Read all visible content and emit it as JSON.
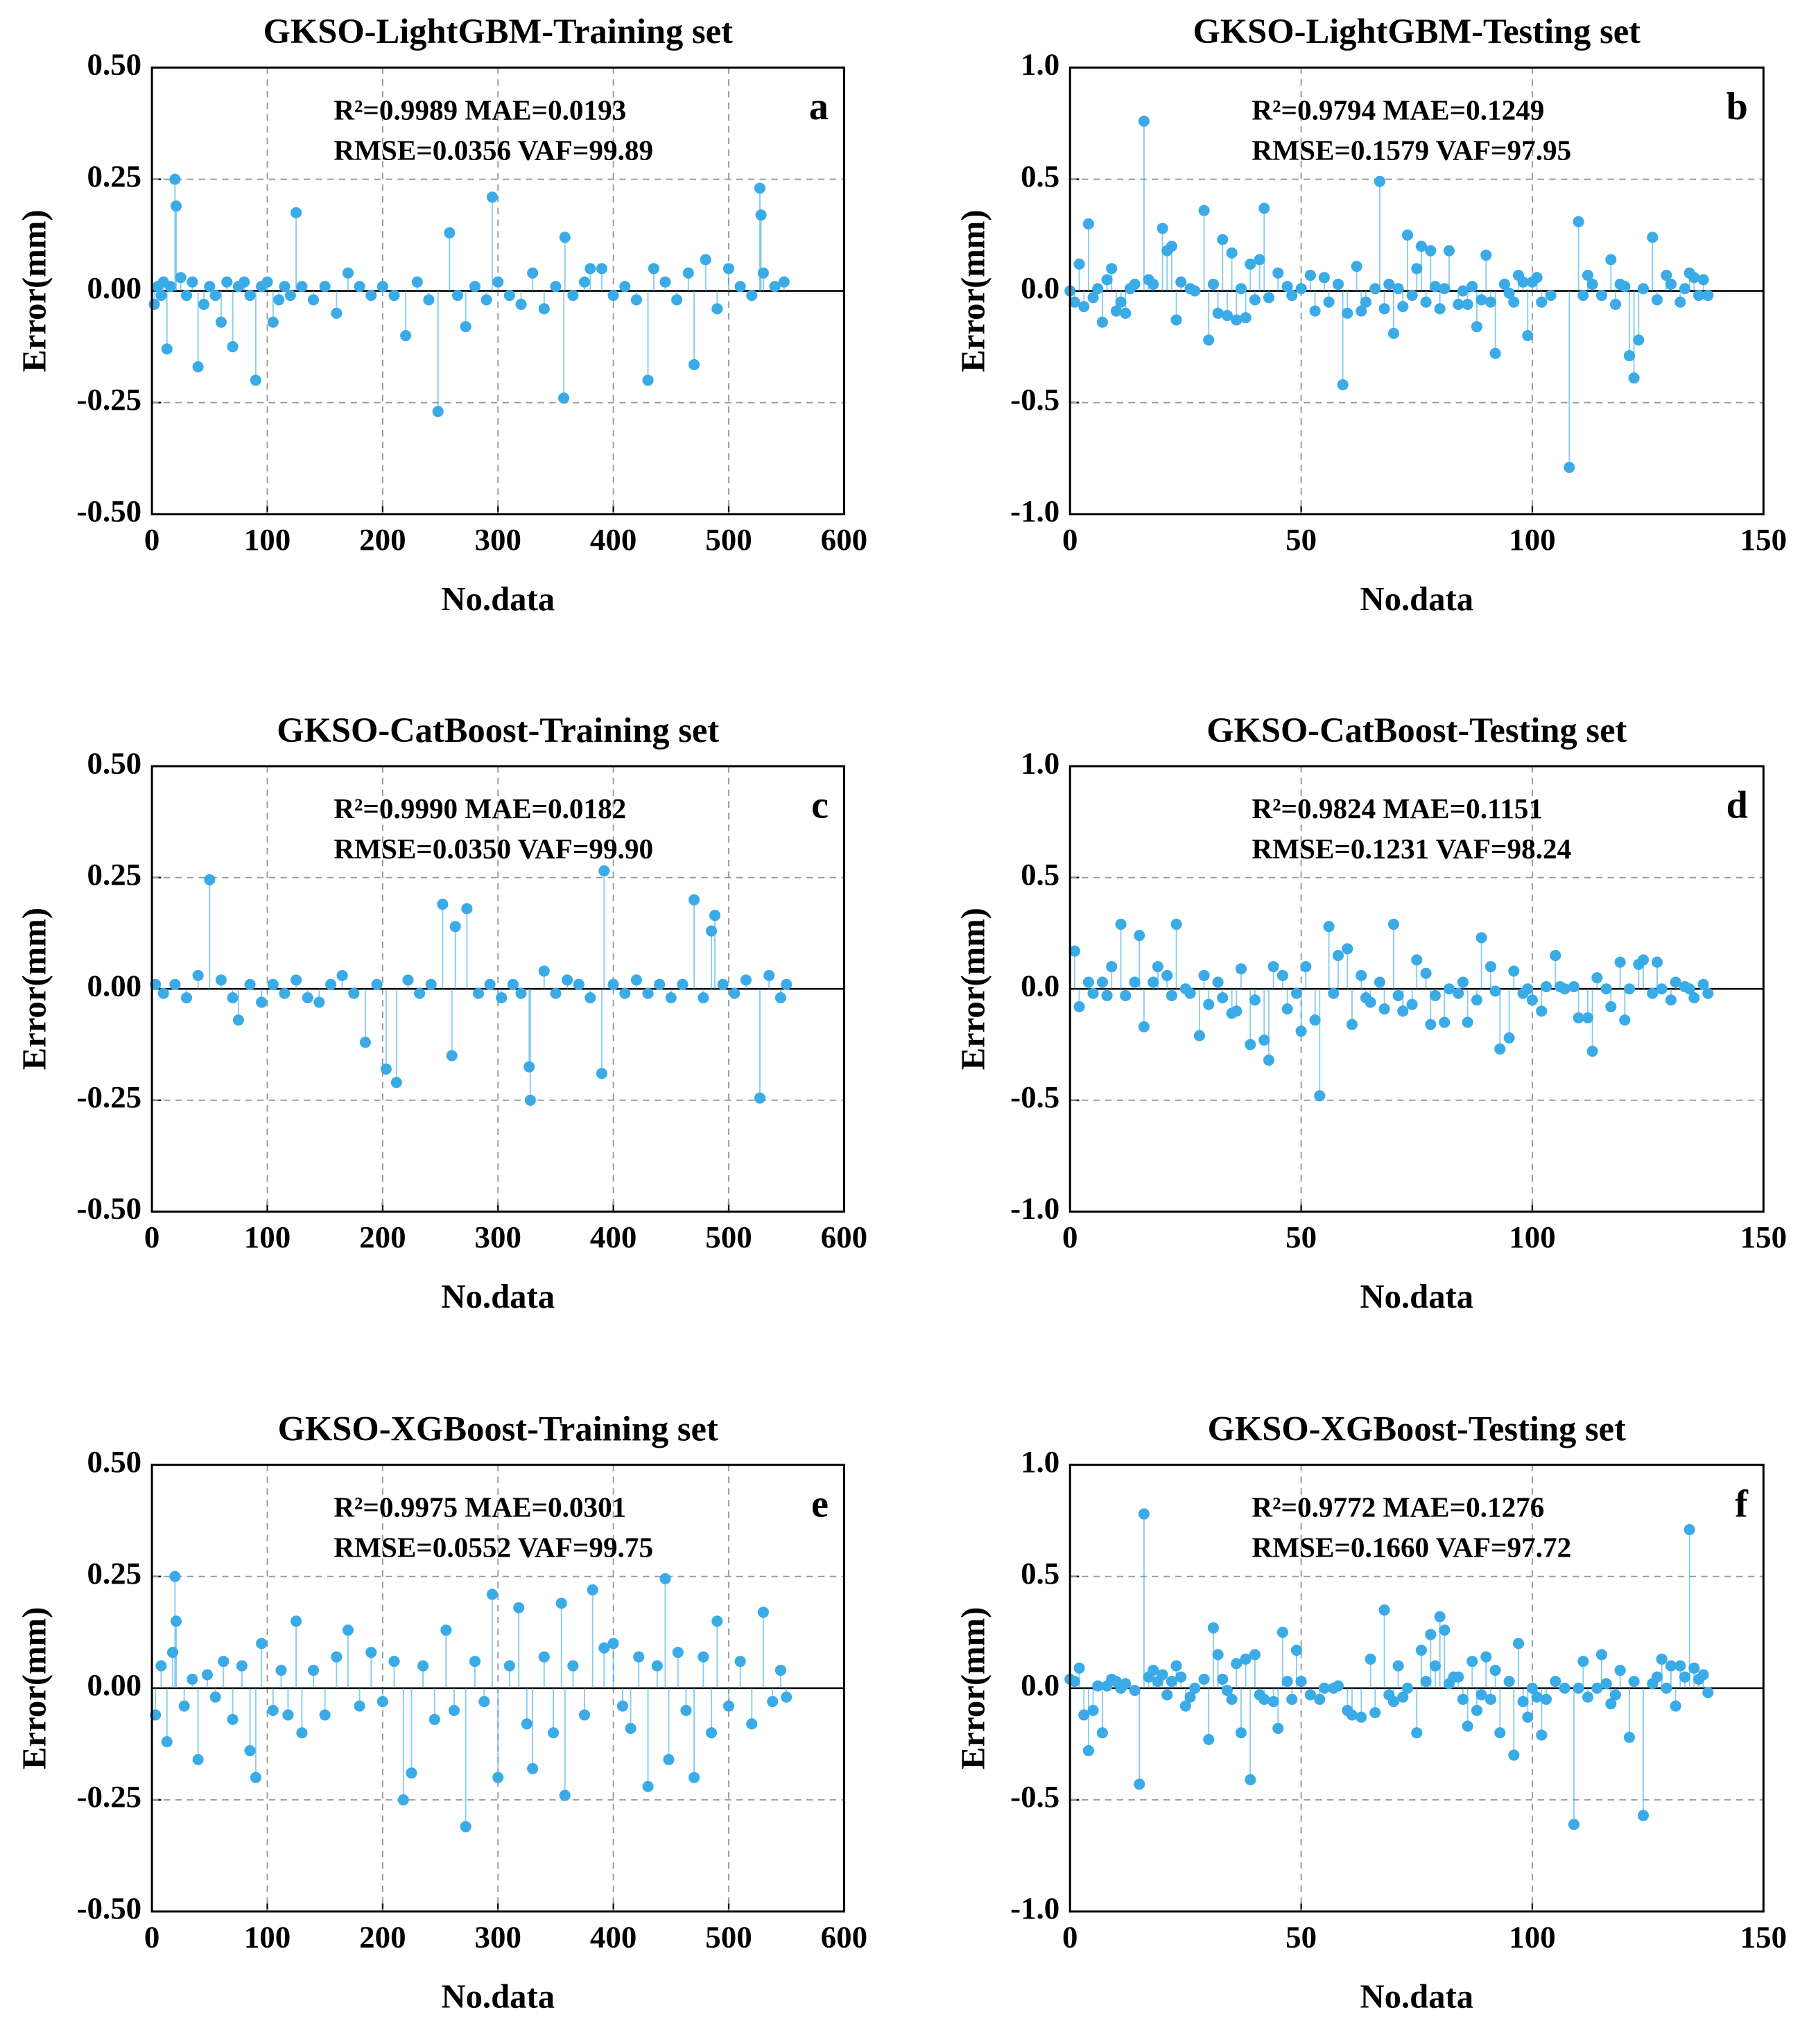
{
  "chart_data": [
    {
      "type": "stem",
      "title": "GKSO-LightGBM-Training set",
      "xlabel": "No.data",
      "ylabel": "Error(mm)",
      "annotations": [
        "R²=0.9989 MAE=0.0193",
        "RMSE=0.0356 VAF=99.89"
      ],
      "panel_label": "a",
      "color": "#3aabe6",
      "x": [
        2,
        5,
        8,
        10,
        13,
        16,
        20,
        21,
        25,
        30,
        35,
        40,
        45,
        50,
        55,
        60,
        65,
        70,
        75,
        80,
        85,
        90,
        95,
        100,
        105,
        110,
        115,
        120,
        125,
        130,
        140,
        150,
        160,
        170,
        180,
        190,
        200,
        210,
        220,
        230,
        240,
        248,
        258,
        265,
        272,
        280,
        290,
        295,
        300,
        310,
        320,
        330,
        340,
        350,
        357,
        358,
        365,
        375,
        380,
        390,
        400,
        410,
        420,
        430,
        435,
        445,
        455,
        465,
        470,
        480,
        490,
        500,
        510,
        520,
        527,
        528,
        530,
        540,
        548
      ],
      "values": [
        -0.03,
        0.01,
        -0.01,
        0.02,
        -0.13,
        0.01,
        0.25,
        0.19,
        0.03,
        -0.01,
        0.02,
        -0.17,
        -0.03,
        0.01,
        -0.01,
        -0.07,
        0.02,
        -0.125,
        0.01,
        0.02,
        -0.01,
        -0.2,
        0.01,
        0.02,
        -0.07,
        -0.02,
        0.01,
        -0.01,
        0.175,
        0.01,
        -0.02,
        0.01,
        -0.05,
        0.04,
        0.01,
        -0.01,
        0.01,
        -0.01,
        -0.1,
        0.02,
        -0.02,
        -0.27,
        0.13,
        -0.01,
        -0.08,
        0.01,
        -0.02,
        0.21,
        0.02,
        -0.01,
        -0.03,
        0.04,
        -0.04,
        0.01,
        -0.24,
        0.12,
        -0.01,
        0.02,
        0.05,
        0.05,
        -0.01,
        0.01,
        -0.02,
        -0.2,
        0.05,
        0.02,
        -0.02,
        0.04,
        -0.165,
        0.07,
        -0.04,
        0.05,
        0.01,
        -0.01,
        0.23,
        0.17,
        0.04,
        0.01,
        0.02
      ],
      "xlim": [
        0,
        600
      ],
      "ylim": [
        -0.5,
        0.5
      ],
      "xticks": [
        0,
        100,
        200,
        300,
        400,
        500,
        600
      ],
      "yticks": [
        {
          "value": -0.5,
          "label": "-0.50"
        },
        -0.25,
        {
          "value": 0,
          "label": "0.00"
        },
        0.25,
        {
          "value": 0.5,
          "label": "0.50"
        }
      ],
      "grid": true
    },
    {
      "type": "stem",
      "title": "GKSO-LightGBM-Testing set",
      "xlabel": "No.data",
      "ylabel": "Error(mm)",
      "annotations": [
        "R²=0.9794 MAE=0.1249",
        "RMSE=0.1579 VAF=97.95"
      ],
      "panel_label": "b",
      "color": "#3aabe6",
      "x": [
        0,
        1,
        2,
        3,
        4,
        5,
        6,
        7,
        8,
        9,
        10,
        11,
        12,
        13,
        14,
        16,
        17,
        18,
        20,
        21,
        22,
        23,
        24,
        26,
        27,
        29,
        30,
        31,
        32,
        33,
        34,
        35,
        36,
        37,
        38,
        39,
        40,
        41,
        42,
        43,
        45,
        47,
        48,
        50,
        52,
        53,
        55,
        56,
        58,
        59,
        60,
        62,
        63,
        64,
        66,
        67,
        68,
        69,
        70,
        71,
        72,
        73,
        74,
        75,
        76,
        77,
        78,
        79,
        80,
        81,
        82,
        84,
        85,
        86,
        87,
        88,
        89,
        90,
        91,
        92,
        94,
        95,
        96,
        97,
        98,
        99,
        100,
        101,
        102,
        104,
        108,
        110,
        111,
        112,
        113,
        115,
        117,
        118,
        119,
        120,
        121,
        122,
        123,
        124,
        126,
        127,
        129,
        130,
        132,
        133,
        134,
        135,
        136,
        137,
        138
      ],
      "values": [
        0.0,
        -0.05,
        0.12,
        -0.07,
        0.3,
        -0.03,
        0.01,
        -0.14,
        0.05,
        0.1,
        -0.09,
        -0.05,
        -0.1,
        0.01,
        0.03,
        0.76,
        0.05,
        0.03,
        0.28,
        0.18,
        0.2,
        -0.13,
        0.04,
        0.01,
        0.0,
        0.36,
        -0.22,
        0.03,
        -0.1,
        0.23,
        -0.11,
        0.17,
        -0.13,
        0.01,
        -0.12,
        0.12,
        -0.04,
        0.14,
        0.37,
        -0.03,
        0.08,
        0.02,
        -0.02,
        0.01,
        0.07,
        -0.09,
        0.06,
        -0.05,
        0.03,
        -0.42,
        -0.1,
        0.11,
        -0.09,
        -0.05,
        0.01,
        0.49,
        -0.08,
        0.03,
        -0.19,
        0.01,
        -0.07,
        0.25,
        -0.02,
        0.1,
        0.2,
        -0.05,
        0.18,
        0.02,
        -0.08,
        0.01,
        0.18,
        -0.06,
        0.0,
        -0.06,
        0.02,
        -0.16,
        -0.04,
        0.16,
        -0.05,
        -0.28,
        0.03,
        -0.01,
        -0.05,
        0.07,
        0.04,
        -0.2,
        0.04,
        0.06,
        -0.05,
        -0.02,
        -0.79,
        0.31,
        -0.02,
        0.07,
        0.03,
        -0.02,
        0.14,
        -0.06,
        0.03,
        0.02,
        -0.29,
        -0.39,
        -0.22,
        0.01,
        0.24,
        -0.04,
        0.07,
        0.03,
        -0.05,
        0.01,
        0.08,
        0.06,
        -0.02,
        0.05,
        -0.02
      ],
      "xlim": [
        0,
        150
      ],
      "ylim": [
        -1,
        1
      ],
      "xticks": [
        0,
        50,
        100,
        150
      ],
      "yticks": [
        {
          "value": -1,
          "label": "-1.0"
        },
        -0.5,
        {
          "value": 0,
          "label": "0.0"
        },
        0.5,
        {
          "value": 1,
          "label": "1.0"
        }
      ],
      "grid": true
    },
    {
      "type": "stem",
      "title": "GKSO-CatBoost-Training set",
      "xlabel": "No.data",
      "ylabel": "Error(mm)",
      "annotations": [
        "R²=0.9990 MAE=0.0182",
        "RMSE=0.0350 VAF=99.90"
      ],
      "panel_label": "c",
      "color": "#3aabe6",
      "x": [
        3,
        10,
        20,
        30,
        40,
        50,
        60,
        70,
        75,
        85,
        95,
        105,
        115,
        125,
        135,
        145,
        155,
        165,
        175,
        185,
        195,
        203,
        212,
        222,
        232,
        242,
        252,
        260,
        263,
        273,
        283,
        293,
        303,
        313,
        320,
        327,
        328,
        340,
        350,
        360,
        370,
        380,
        390,
        392,
        400,
        410,
        420,
        430,
        440,
        450,
        460,
        470,
        478,
        485,
        488,
        495,
        505,
        515,
        527,
        535,
        545,
        550
      ],
      "values": [
        0.01,
        -0.01,
        0.01,
        -0.02,
        0.03,
        0.245,
        0.02,
        -0.02,
        -0.07,
        0.01,
        -0.03,
        0.01,
        -0.01,
        0.02,
        -0.02,
        -0.03,
        0.01,
        0.03,
        -0.01,
        -0.12,
        0.01,
        -0.18,
        -0.21,
        0.02,
        -0.01,
        0.01,
        0.19,
        -0.15,
        0.14,
        0.18,
        -0.01,
        0.01,
        -0.02,
        0.01,
        -0.01,
        -0.175,
        -0.25,
        0.04,
        -0.01,
        0.02,
        0.01,
        -0.02,
        -0.19,
        0.265,
        0.01,
        -0.01,
        0.02,
        -0.01,
        0.01,
        -0.02,
        0.01,
        0.2,
        -0.02,
        0.13,
        0.165,
        0.01,
        -0.01,
        0.02,
        -0.245,
        0.03,
        -0.02,
        0.01
      ],
      "xlim": [
        0,
        600
      ],
      "ylim": [
        -0.5,
        0.5
      ],
      "xticks": [
        0,
        100,
        200,
        300,
        400,
        500,
        600
      ],
      "yticks": [
        {
          "value": -0.5,
          "label": "-0.50"
        },
        -0.25,
        {
          "value": 0,
          "label": "0.00"
        },
        0.25,
        {
          "value": 0.5,
          "label": "0.50"
        }
      ],
      "grid": true
    },
    {
      "type": "stem",
      "title": "GKSO-CatBoost-Testing set",
      "xlabel": "No.data",
      "ylabel": "Error(mm)",
      "annotations": [
        "R²=0.9824 MAE=0.1151",
        "RMSE=0.1231 VAF=98.24"
      ],
      "panel_label": "d",
      "color": "#3aabe6",
      "x": [
        1,
        2,
        4,
        5,
        7,
        8,
        9,
        11,
        12,
        14,
        15,
        16,
        18,
        19,
        21,
        22,
        23,
        25,
        26,
        28,
        29,
        30,
        32,
        33,
        35,
        36,
        37,
        39,
        40,
        42,
        43,
        44,
        46,
        47,
        49,
        50,
        51,
        53,
        54,
        56,
        57,
        58,
        60,
        61,
        63,
        64,
        65,
        67,
        68,
        70,
        71,
        72,
        74,
        75,
        77,
        78,
        79,
        81,
        82,
        84,
        85,
        86,
        88,
        89,
        91,
        92,
        93,
        95,
        96,
        98,
        99,
        100,
        102,
        103,
        105,
        106,
        107,
        109,
        110,
        112,
        113,
        114,
        116,
        117,
        119,
        120,
        121,
        123,
        124,
        126,
        127,
        128,
        130,
        131,
        133,
        134,
        135,
        137,
        138
      ],
      "values": [
        0.17,
        -0.08,
        0.03,
        -0.02,
        0.03,
        -0.03,
        0.1,
        0.29,
        -0.03,
        0.03,
        0.24,
        -0.17,
        0.03,
        0.1,
        0.06,
        -0.03,
        0.29,
        0.0,
        -0.02,
        -0.21,
        0.06,
        -0.07,
        0.03,
        -0.04,
        -0.11,
        -0.1,
        0.09,
        -0.25,
        -0.05,
        -0.23,
        -0.32,
        0.1,
        0.06,
        -0.09,
        -0.02,
        -0.19,
        0.1,
        -0.14,
        -0.48,
        0.28,
        -0.02,
        0.15,
        0.18,
        -0.16,
        0.06,
        -0.04,
        -0.06,
        0.03,
        -0.09,
        0.29,
        -0.03,
        -0.1,
        -0.07,
        0.13,
        0.07,
        -0.16,
        -0.03,
        -0.15,
        0.0,
        -0.02,
        0.03,
        -0.15,
        -0.05,
        0.23,
        0.1,
        -0.01,
        -0.27,
        -0.22,
        0.08,
        -0.02,
        0.0,
        -0.05,
        -0.1,
        0.01,
        0.15,
        0.01,
        0.0,
        0.01,
        -0.13,
        -0.13,
        -0.28,
        0.05,
        0.0,
        -0.08,
        0.12,
        -0.14,
        0.0,
        0.11,
        0.13,
        -0.02,
        0.12,
        0.0,
        -0.05,
        0.03,
        0.01,
        0.0,
        -0.04,
        0.02,
        -0.02
      ],
      "xlim": [
        0,
        150
      ],
      "ylim": [
        -1,
        1
      ],
      "xticks": [
        0,
        50,
        100,
        150
      ],
      "yticks": [
        {
          "value": -1,
          "label": "-1.0"
        },
        -0.5,
        {
          "value": 0,
          "label": "0.0"
        },
        0.5,
        {
          "value": 1,
          "label": "1.0"
        }
      ],
      "grid": true
    },
    {
      "type": "stem",
      "title": "GKSO-XGBoost-Training set",
      "xlabel": "No.data",
      "ylabel": "Error(mm)",
      "annotations": [
        "R²=0.9975 MAE=0.0301",
        "RMSE=0.0552 VAF=99.75"
      ],
      "panel_label": "e",
      "color": "#3aabe6",
      "x": [
        3,
        8,
        13,
        18,
        20,
        21,
        28,
        35,
        40,
        48,
        55,
        62,
        70,
        78,
        85,
        90,
        95,
        105,
        112,
        118,
        125,
        130,
        140,
        150,
        160,
        170,
        180,
        190,
        200,
        210,
        218,
        225,
        235,
        245,
        255,
        262,
        272,
        280,
        288,
        295,
        300,
        310,
        318,
        325,
        330,
        340,
        348,
        355,
        358,
        365,
        375,
        382,
        392,
        400,
        408,
        415,
        422,
        430,
        438,
        445,
        448,
        456,
        463,
        470,
        478,
        485,
        490,
        500,
        510,
        520,
        530,
        538,
        545,
        550
      ],
      "values": [
        -0.06,
        0.05,
        -0.12,
        0.08,
        0.25,
        0.15,
        -0.04,
        0.02,
        -0.16,
        0.03,
        -0.02,
        0.06,
        -0.07,
        0.05,
        -0.14,
        -0.2,
        0.1,
        -0.05,
        0.04,
        -0.06,
        0.15,
        -0.1,
        0.04,
        -0.06,
        0.07,
        0.13,
        -0.04,
        0.08,
        -0.03,
        0.06,
        -0.25,
        -0.19,
        0.05,
        -0.07,
        0.13,
        -0.05,
        -0.31,
        0.06,
        -0.03,
        0.21,
        -0.2,
        0.05,
        0.18,
        -0.08,
        -0.18,
        0.07,
        -0.1,
        0.19,
        -0.24,
        0.05,
        -0.06,
        0.22,
        0.09,
        0.1,
        -0.04,
        -0.09,
        0.07,
        -0.22,
        0.05,
        0.245,
        -0.16,
        0.08,
        -0.05,
        -0.2,
        0.07,
        -0.1,
        0.15,
        -0.04,
        0.06,
        -0.08,
        0.17,
        -0.03,
        0.04,
        -0.02
      ],
      "xlim": [
        0,
        600
      ],
      "ylim": [
        -0.5,
        0.5
      ],
      "xticks": [
        0,
        100,
        200,
        300,
        400,
        500,
        600
      ],
      "yticks": [
        {
          "value": -0.5,
          "label": "-0.50"
        },
        -0.25,
        {
          "value": 0,
          "label": "0.00"
        },
        0.25,
        {
          "value": 0.5,
          "label": "0.50"
        }
      ],
      "grid": true
    },
    {
      "type": "stem",
      "title": "GKSO-XGBoost-Testing set",
      "xlabel": "No.data",
      "ylabel": "Error(mm)",
      "annotations": [
        "R²=0.9772 MAE=0.1276",
        "RMSE=0.1660 VAF=97.72"
      ],
      "panel_label": "f",
      "color": "#3aabe6",
      "x": [
        0,
        1,
        2,
        3,
        4,
        5,
        6,
        7,
        8,
        9,
        10,
        11,
        12,
        14,
        15,
        16,
        17,
        18,
        19,
        20,
        21,
        22,
        23,
        24,
        25,
        26,
        27,
        29,
        30,
        31,
        32,
        33,
        34,
        35,
        36,
        37,
        38,
        39,
        40,
        41,
        42,
        44,
        45,
        46,
        47,
        48,
        49,
        50,
        52,
        54,
        55,
        57,
        58,
        60,
        61,
        63,
        65,
        66,
        68,
        69,
        70,
        71,
        72,
        73,
        75,
        76,
        77,
        78,
        79,
        80,
        81,
        82,
        83,
        84,
        85,
        86,
        87,
        88,
        89,
        90,
        91,
        92,
        93,
        95,
        96,
        97,
        98,
        99,
        100,
        101,
        102,
        103,
        105,
        107,
        109,
        110,
        111,
        112,
        114,
        115,
        116,
        117,
        118,
        119,
        121,
        122,
        124,
        126,
        127,
        128,
        129,
        130,
        131,
        132,
        133,
        134,
        135,
        136,
        137,
        138
      ],
      "values": [
        0.04,
        0.03,
        0.09,
        -0.12,
        -0.28,
        -0.1,
        0.01,
        -0.2,
        0.01,
        0.04,
        0.03,
        0.0,
        0.02,
        -0.01,
        -0.43,
        0.78,
        0.05,
        0.08,
        0.03,
        0.06,
        -0.03,
        0.03,
        0.1,
        0.05,
        -0.08,
        -0.04,
        0.0,
        0.04,
        -0.23,
        0.27,
        0.15,
        0.04,
        -0.01,
        -0.05,
        0.11,
        -0.2,
        0.13,
        -0.41,
        0.15,
        -0.03,
        -0.05,
        -0.06,
        -0.18,
        0.25,
        0.03,
        -0.05,
        0.17,
        0.03,
        -0.03,
        -0.05,
        0.0,
        0.0,
        0.01,
        -0.1,
        -0.12,
        -0.13,
        0.13,
        -0.11,
        0.35,
        -0.03,
        -0.06,
        0.1,
        -0.04,
        0.0,
        -0.2,
        0.17,
        0.03,
        0.24,
        0.1,
        0.32,
        0.26,
        0.02,
        0.05,
        0.05,
        -0.05,
        -0.17,
        0.12,
        -0.1,
        -0.03,
        0.14,
        -0.05,
        0.08,
        -0.2,
        0.03,
        -0.3,
        0.2,
        -0.06,
        -0.13,
        0.0,
        -0.04,
        -0.21,
        -0.05,
        0.03,
        0.0,
        -0.61,
        0.0,
        0.12,
        -0.04,
        0.0,
        0.15,
        0.02,
        -0.07,
        -0.03,
        0.08,
        -0.22,
        0.03,
        -0.57,
        0.02,
        0.05,
        0.13,
        0.0,
        0.1,
        -0.08,
        0.1,
        0.05,
        0.71,
        0.09,
        0.04,
        0.06,
        -0.02
      ],
      "xlim": [
        0,
        150
      ],
      "ylim": [
        -1,
        1
      ],
      "xticks": [
        0,
        50,
        100,
        150
      ],
      "yticks": [
        {
          "value": -1,
          "label": "-1.0"
        },
        -0.5,
        {
          "value": 0,
          "label": "0.0"
        },
        0.5,
        {
          "value": 1,
          "label": "1.0"
        }
      ],
      "grid": true
    }
  ]
}
